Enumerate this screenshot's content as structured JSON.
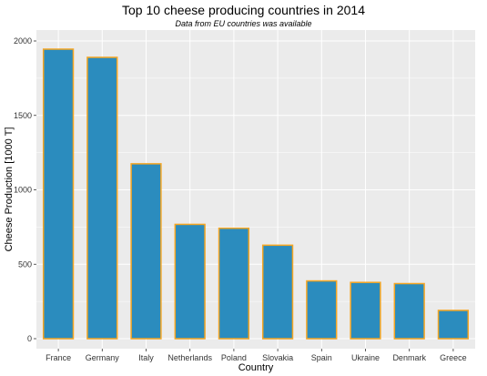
{
  "chart_data": {
    "type": "bar",
    "title": "Top 10 cheese producing countries in 2014",
    "subtitle": "Data from EU countries was available",
    "xlabel": "Country",
    "ylabel": "Cheese Production [1000 T]",
    "categories": [
      "France",
      "Germany",
      "Italy",
      "Netherlands",
      "Poland",
      "Slovakia",
      "Spain",
      "Ukraine",
      "Denmark",
      "Greece"
    ],
    "values": [
      1945,
      1890,
      1175,
      768,
      742,
      628,
      388,
      378,
      370,
      190
    ],
    "ylim": [
      0,
      2100
    ],
    "yticks": [
      0,
      500,
      1000,
      1500,
      2000
    ],
    "grid": true,
    "bar_fill": "#2B8CBE",
    "bar_outline": "#F5A623",
    "panel_background": "#EBEBEB",
    "gridline_color": "#FFFFFF"
  }
}
